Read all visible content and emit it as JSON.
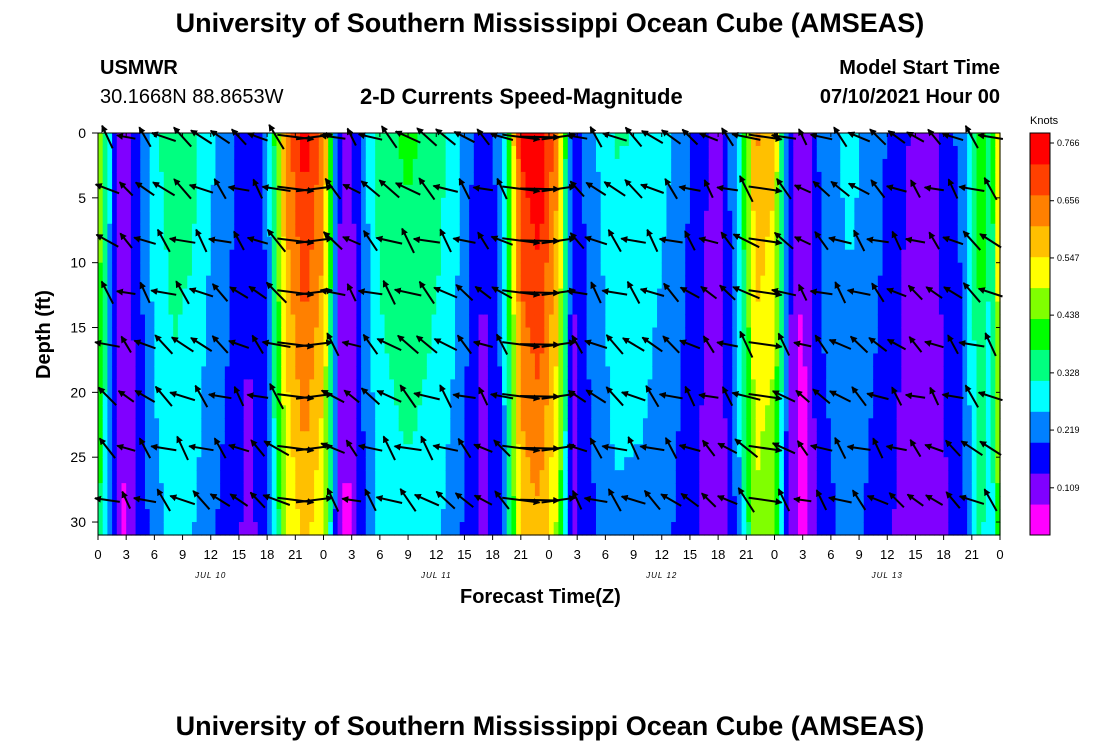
{
  "title_top": "University of Southern Mississippi Ocean Cube (AMSEAS)",
  "title_bottom": "University of Southern Mississippi Ocean Cube (AMSEAS)",
  "station": {
    "name": "USMWR",
    "coords": "30.1668N  88.8653W"
  },
  "model": {
    "label": "Model Start Time",
    "value": "07/10/2021 Hour 00"
  },
  "chart_data": {
    "type": "heatmap",
    "title": "2-D Currents Speed-Magnitude",
    "xlabel": "Forecast Time(Z)",
    "ylabel": "Depth (ft)",
    "units": "Knots",
    "x_range_hours": [
      0,
      96
    ],
    "y_range_ft": [
      0,
      31
    ],
    "x_tick_labels": [
      "0",
      "3",
      "6",
      "9",
      "12",
      "15",
      "18",
      "21",
      "0",
      "3",
      "6",
      "9",
      "12",
      "15",
      "18",
      "21",
      "0",
      "3",
      "6",
      "9",
      "12",
      "15",
      "18",
      "21",
      "0",
      "3",
      "6",
      "9",
      "12",
      "15",
      "18",
      "21",
      "0"
    ],
    "y_ticks": [
      0,
      5,
      10,
      15,
      20,
      25,
      30
    ],
    "day_labels": [
      {
        "label": "JUL 10",
        "hour": 12
      },
      {
        "label": "JUL 11",
        "hour": 36
      },
      {
        "label": "JUL 12",
        "hour": 60
      },
      {
        "label": "JUL 13",
        "hour": 84
      }
    ],
    "colorbar": {
      "range": [
        0,
        0.766
      ],
      "ticks": [
        0.766,
        0.656,
        0.547,
        0.438,
        0.328,
        0.219,
        0.109
      ],
      "colors": [
        "#ff00ff",
        "#8000ff",
        "#0000ff",
        "#0080ff",
        "#00ffff",
        "#00ff80",
        "#00ff00",
        "#80ff00",
        "#ffff00",
        "#ffc000",
        "#ff8000",
        "#ff4000",
        "#ff0000"
      ]
    },
    "speed_profile_knots": [
      {
        "hour": 0,
        "speed": 0.5
      },
      {
        "hour": 1.5,
        "speed": 0.2
      },
      {
        "hour": 2.5,
        "speed": 0.06
      },
      {
        "hour": 4,
        "speed": 0.15
      },
      {
        "hour": 6,
        "speed": 0.28
      },
      {
        "hour": 8,
        "speed": 0.34
      },
      {
        "hour": 10,
        "speed": 0.32
      },
      {
        "hour": 12,
        "speed": 0.25
      },
      {
        "hour": 14,
        "speed": 0.2
      },
      {
        "hour": 16,
        "speed": 0.13
      },
      {
        "hour": 18,
        "speed": 0.2
      },
      {
        "hour": 20,
        "speed": 0.62
      },
      {
        "hour": 22,
        "speed": 0.74
      },
      {
        "hour": 24,
        "speed": 0.63
      },
      {
        "hour": 25.5,
        "speed": 0.15
      },
      {
        "hour": 26.5,
        "speed": 0.05
      },
      {
        "hour": 28,
        "speed": 0.2
      },
      {
        "hour": 30,
        "speed": 0.33
      },
      {
        "hour": 33,
        "speed": 0.37
      },
      {
        "hour": 36,
        "speed": 0.33
      },
      {
        "hour": 38,
        "speed": 0.27
      },
      {
        "hour": 41,
        "speed": 0.12
      },
      {
        "hour": 43,
        "speed": 0.22
      },
      {
        "hour": 45,
        "speed": 0.72
      },
      {
        "hour": 47,
        "speed": 0.77
      },
      {
        "hour": 49,
        "speed": 0.6
      },
      {
        "hour": 50.5,
        "speed": 0.12
      },
      {
        "hour": 52,
        "speed": 0.2
      },
      {
        "hour": 55,
        "speed": 0.3
      },
      {
        "hour": 58,
        "speed": 0.29
      },
      {
        "hour": 61,
        "speed": 0.24
      },
      {
        "hour": 64,
        "speed": 0.15
      },
      {
        "hour": 66,
        "speed": 0.08
      },
      {
        "hour": 68,
        "speed": 0.25
      },
      {
        "hour": 70,
        "speed": 0.6
      },
      {
        "hour": 72,
        "speed": 0.55
      },
      {
        "hour": 73.5,
        "speed": 0.15
      },
      {
        "hour": 75,
        "speed": 0.05
      },
      {
        "hour": 77,
        "speed": 0.2
      },
      {
        "hour": 80,
        "speed": 0.26
      },
      {
        "hour": 83,
        "speed": 0.2
      },
      {
        "hour": 86,
        "speed": 0.12
      },
      {
        "hour": 89,
        "speed": 0.11
      },
      {
        "hour": 92,
        "speed": 0.2
      },
      {
        "hour": 94,
        "speed": 0.42
      },
      {
        "hour": 95,
        "speed": 0.3
      },
      {
        "hour": 96,
        "speed": 0.6
      }
    ],
    "vector_depths_ft": [
      0,
      4,
      8,
      12,
      16,
      20,
      24,
      28
    ]
  }
}
